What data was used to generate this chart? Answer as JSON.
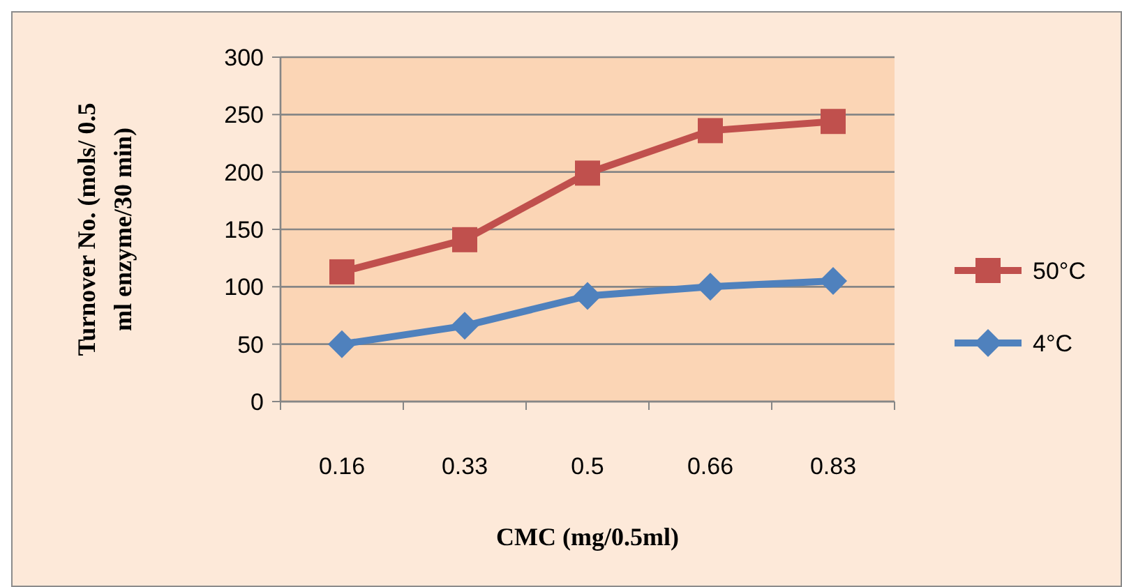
{
  "chart_data": {
    "type": "line",
    "xlabel": "CMC (mg/0.5ml)",
    "ylabel": "Turnover No. (mols/ 0.5 ml enzyme/30 min)",
    "categories": [
      "0.16",
      "0.33",
      "0.5",
      "0.66",
      "0.83"
    ],
    "series": [
      {
        "name": "50°C",
        "color": "#c0504d",
        "marker": "square",
        "values": [
          113,
          141,
          199,
          236,
          244
        ]
      },
      {
        "name": "4°C",
        "color": "#4f81bd",
        "marker": "diamond",
        "values": [
          50,
          66,
          92,
          100,
          105
        ]
      }
    ],
    "ylim": [
      0,
      300
    ],
    "yticks": [
      0,
      50,
      100,
      150,
      200,
      250,
      300
    ],
    "grid": "y",
    "legend": "right"
  }
}
